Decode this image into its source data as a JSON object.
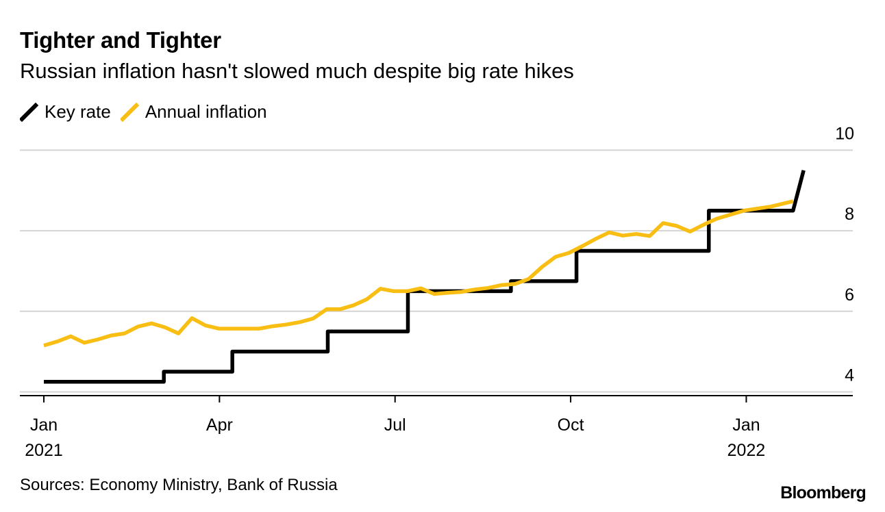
{
  "chart_data": {
    "type": "line",
    "title": "Tighter and Tighter",
    "subtitle": "Russian inflation hasn't slowed much despite big rate hikes",
    "legend": [
      "Key rate",
      "Annual inflation"
    ],
    "y_ticks": [
      "10",
      "8",
      "6",
      "4"
    ],
    "ylim": [
      3.6,
      10.5
    ],
    "y_tick_values": [
      10,
      8,
      6,
      4
    ],
    "x_ticks": [
      {
        "label": "Jan",
        "sublabel": "2021",
        "month": 0
      },
      {
        "label": "Apr",
        "sublabel": "",
        "month": 3
      },
      {
        "label": "Jul",
        "sublabel": "",
        "month": 6
      },
      {
        "label": "Oct",
        "sublabel": "",
        "month": 9
      },
      {
        "label": "Jan",
        "sublabel": "2022",
        "month": 12
      }
    ],
    "xlim": [
      0,
      13.82
    ],
    "series": [
      {
        "name": "Key rate",
        "color": "#000000",
        "step": true,
        "x": [
          0.0,
          2.05,
          2.05,
          3.22,
          3.22,
          4.85,
          4.85,
          6.22,
          6.22,
          6.54,
          6.54,
          7.98,
          7.98,
          9.1,
          9.1,
          10.03,
          10.03,
          11.36,
          11.36,
          12.8,
          12.8,
          12.98
        ],
        "values": [
          4.25,
          4.25,
          4.5,
          4.5,
          5.0,
          5.0,
          5.5,
          5.5,
          6.5,
          6.5,
          6.5,
          6.5,
          6.75,
          6.75,
          7.5,
          7.5,
          7.5,
          7.5,
          8.5,
          8.5,
          8.5,
          9.5
        ]
      },
      {
        "name": "Annual inflation",
        "color": "#F9BE14",
        "step": false,
        "x": [
          0.0,
          0.23,
          0.46,
          0.69,
          0.92,
          1.15,
          1.38,
          1.61,
          1.84,
          2.07,
          2.3,
          2.53,
          2.76,
          2.99,
          3.22,
          3.45,
          3.68,
          3.91,
          4.14,
          4.37,
          4.6,
          4.83,
          5.06,
          5.29,
          5.52,
          5.75,
          5.98,
          6.21,
          6.44,
          6.67,
          6.9,
          7.13,
          7.36,
          7.59,
          7.82,
          8.05,
          8.28,
          8.51,
          8.74,
          8.97,
          9.2,
          9.43,
          9.66,
          9.89,
          10.12,
          10.35,
          10.58,
          10.81,
          11.04,
          11.27,
          11.5,
          11.73,
          11.96,
          12.19,
          12.42,
          12.65,
          12.8
        ],
        "values": [
          5.15,
          5.25,
          5.38,
          5.22,
          5.3,
          5.4,
          5.45,
          5.62,
          5.7,
          5.6,
          5.45,
          5.83,
          5.65,
          5.57,
          5.57,
          5.57,
          5.57,
          5.63,
          5.67,
          5.73,
          5.82,
          6.05,
          6.05,
          6.15,
          6.3,
          6.56,
          6.5,
          6.5,
          6.57,
          6.43,
          6.46,
          6.48,
          6.54,
          6.58,
          6.65,
          6.68,
          6.8,
          7.1,
          7.35,
          7.45,
          7.62,
          7.8,
          7.96,
          7.88,
          7.92,
          7.87,
          8.19,
          8.12,
          7.98,
          8.15,
          8.3,
          8.4,
          8.5,
          8.55,
          8.6,
          8.68,
          8.73
        ]
      }
    ]
  },
  "footer": {
    "source": "Sources: Economy Ministry, Bank of Russia",
    "brand": "Bloomberg"
  }
}
